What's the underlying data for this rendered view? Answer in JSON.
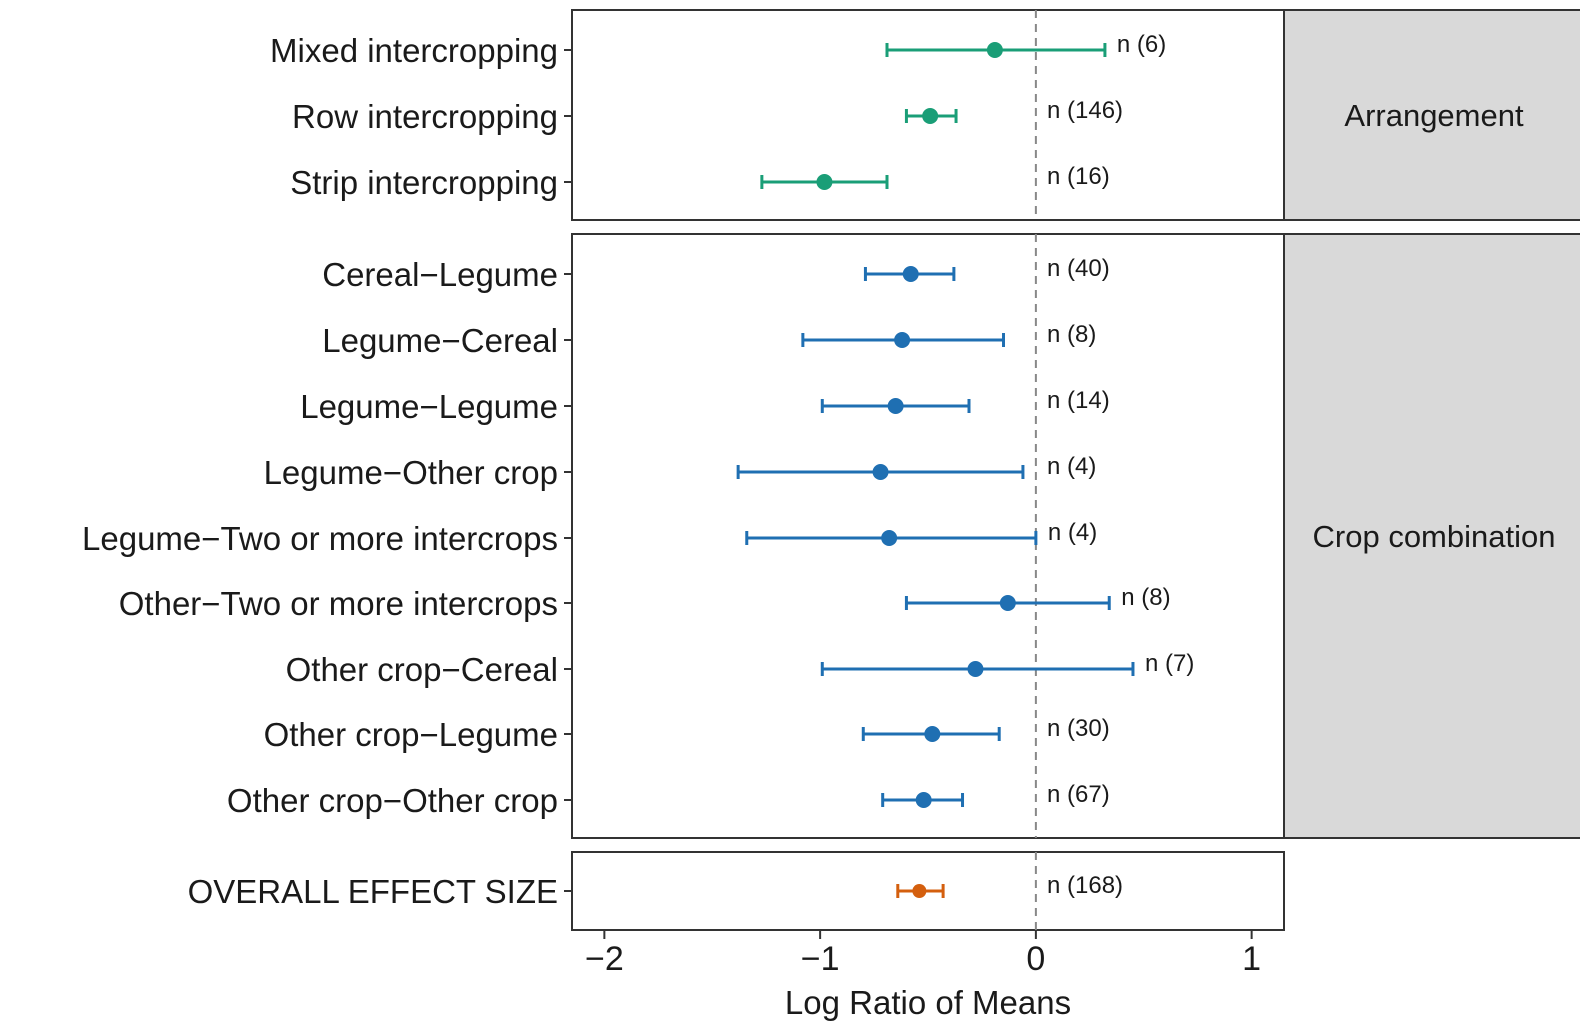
{
  "chart_data": {
    "type": "forest",
    "xlabel": "Log Ratio of Means",
    "xlim": [
      -2.15,
      1.15
    ],
    "x_ticks": [
      -2,
      -1,
      0,
      1
    ],
    "x_tick_labels": [
      "−2",
      "−1",
      "0",
      "1"
    ],
    "reference_line": 0,
    "panels": [
      {
        "strip": "Arrangement",
        "color": "#1a9e77",
        "rows": [
          {
            "label": "Mixed intercropping",
            "estimate": -0.19,
            "lower": -0.69,
            "upper": 0.32,
            "n": "n (6)"
          },
          {
            "label": "Row intercropping",
            "estimate": -0.49,
            "lower": -0.6,
            "upper": -0.37,
            "n": "n (146)"
          },
          {
            "label": "Strip intercropping",
            "estimate": -0.98,
            "lower": -1.27,
            "upper": -0.69,
            "n": "n (16)"
          }
        ]
      },
      {
        "strip": "Crop combination",
        "color": "#1f6fb2",
        "rows": [
          {
            "label": "Cereal−Legume",
            "estimate": -0.58,
            "lower": -0.79,
            "upper": -0.38,
            "n": "n (40)"
          },
          {
            "label": "Legume−Cereal",
            "estimate": -0.62,
            "lower": -1.08,
            "upper": -0.15,
            "n": "n (8)"
          },
          {
            "label": "Legume−Legume",
            "estimate": -0.65,
            "lower": -0.99,
            "upper": -0.31,
            "n": "n (14)"
          },
          {
            "label": "Legume−Other crop",
            "estimate": -0.72,
            "lower": -1.38,
            "upper": -0.06,
            "n": "n (4)"
          },
          {
            "label": "Legume−Two or more intercrops",
            "estimate": -0.68,
            "lower": -1.34,
            "upper": 0.0,
            "n": "n (4)"
          },
          {
            "label": "Other−Two or more intercrops",
            "estimate": -0.13,
            "lower": -0.6,
            "upper": 0.34,
            "n": "n (8)"
          },
          {
            "label": "Other crop−Cereal",
            "estimate": -0.28,
            "lower": -0.99,
            "upper": 0.45,
            "n": "n (7)"
          },
          {
            "label": "Other crop−Legume",
            "estimate": -0.48,
            "lower": -0.8,
            "upper": -0.17,
            "n": "n (30)"
          },
          {
            "label": "Other crop−Other crop",
            "estimate": -0.52,
            "lower": -0.71,
            "upper": -0.34,
            "n": "n (67)"
          }
        ]
      },
      {
        "strip": "",
        "color": "#d45f0e",
        "rows": [
          {
            "label": "OVERALL EFFECT SIZE",
            "estimate": -0.54,
            "lower": -0.64,
            "upper": -0.43,
            "n": "n (168)"
          }
        ]
      }
    ]
  }
}
